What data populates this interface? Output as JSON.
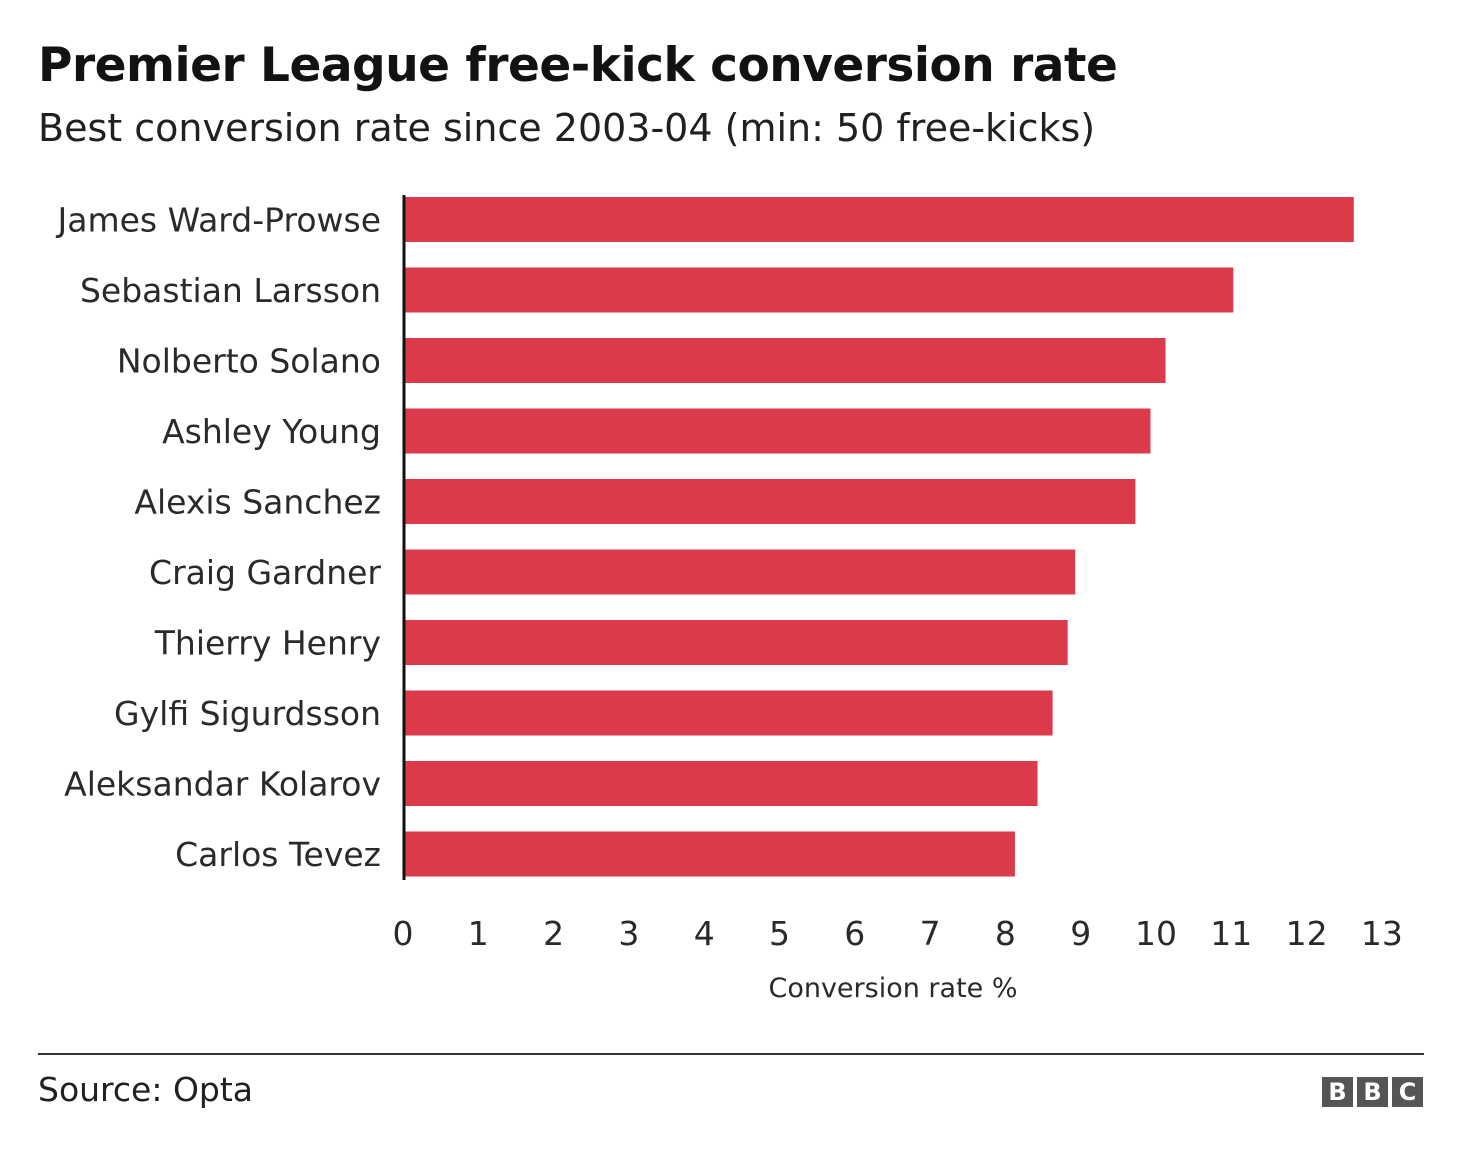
{
  "chart_data": {
    "type": "bar",
    "orientation": "horizontal",
    "title": "Premier League free-kick conversion rate",
    "subtitle": "Best conversion rate since 2003-04 (min: 50 free-kicks)",
    "xlabel": "Conversion rate %",
    "xlim": [
      0,
      13
    ],
    "xticks": [
      "0",
      "1",
      "2",
      "3",
      "4",
      "5",
      "6",
      "7",
      "8",
      "9",
      "10",
      "11",
      "12",
      "13"
    ],
    "categories": [
      "James Ward-Prowse",
      "Sebastian Larsson",
      "Nolberto Solano",
      "Ashley Young",
      "Alexis Sanchez",
      "Craig Gardner",
      "Thierry Henry",
      "Gylfi Sigurdsson",
      "Aleksandar Kolarov",
      "Carlos Tevez"
    ],
    "values": [
      12.6,
      11.0,
      10.1,
      9.9,
      9.7,
      8.9,
      8.8,
      8.6,
      8.4,
      8.1
    ],
    "bar_color": "#db3a4a",
    "grid": false
  },
  "footer": {
    "source": "Source: Opta",
    "logo_letters": [
      "B",
      "B",
      "C"
    ]
  }
}
